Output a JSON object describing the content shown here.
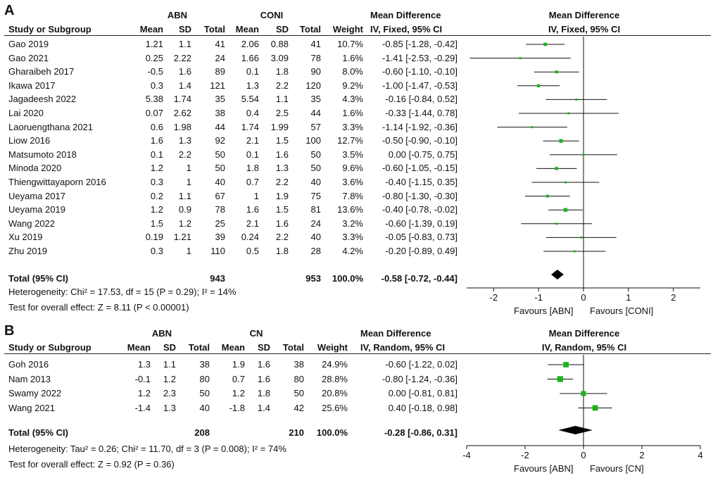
{
  "chart_data": [
    {
      "type": "forest",
      "panel_label": "A",
      "group_left": "ABN",
      "group_right": "CONI",
      "header_stat": "Mean Difference",
      "header_col": [
        "Study or Subgroup",
        "Mean",
        "SD",
        "Total",
        "Mean",
        "SD",
        "Total",
        "Weight",
        "IV, Fixed, 95% CI"
      ],
      "plot_header": [
        "Mean Difference",
        "IV, Fixed, 95% CI"
      ],
      "studies": [
        {
          "name": "Gao 2019",
          "m1": "1.21",
          "sd1": "1.1",
          "n1": "41",
          "m2": "2.06",
          "sd2": "0.88",
          "n2": "41",
          "weight": "10.7%",
          "ci_text": "-0.85 [-1.28, -0.42]",
          "md": -0.85,
          "lo": -1.28,
          "hi": -0.42,
          "w": 10.7
        },
        {
          "name": "Gao 2021",
          "m1": "0.25",
          "sd1": "2.22",
          "n1": "24",
          "m2": "1.66",
          "sd2": "3.09",
          "n2": "78",
          "weight": "1.6%",
          "ci_text": "-1.41 [-2.53, -0.29]",
          "md": -1.41,
          "lo": -2.53,
          "hi": -0.29,
          "w": 1.6
        },
        {
          "name": "Gharaibeh 2017",
          "m1": "-0.5",
          "sd1": "1.6",
          "n1": "89",
          "m2": "0.1",
          "sd2": "1.8",
          "n2": "90",
          "weight": "8.0%",
          "ci_text": "-0.60 [-1.10, -0.10]",
          "md": -0.6,
          "lo": -1.1,
          "hi": -0.1,
          "w": 8.0
        },
        {
          "name": "Ikawa 2017",
          "m1": "0.3",
          "sd1": "1.4",
          "n1": "121",
          "m2": "1.3",
          "sd2": "2.2",
          "n2": "120",
          "weight": "9.2%",
          "ci_text": "-1.00 [-1.47, -0.53]",
          "md": -1.0,
          "lo": -1.47,
          "hi": -0.53,
          "w": 9.2
        },
        {
          "name": "Jagadeesh 2022",
          "m1": "5.38",
          "sd1": "1.74",
          "n1": "35",
          "m2": "5.54",
          "sd2": "1.1",
          "n2": "35",
          "weight": "4.3%",
          "ci_text": "-0.16 [-0.84, 0.52]",
          "md": -0.16,
          "lo": -0.84,
          "hi": 0.52,
          "w": 4.3
        },
        {
          "name": "Lai 2020",
          "m1": "0.07",
          "sd1": "2.62",
          "n1": "38",
          "m2": "0.4",
          "sd2": "2.5",
          "n2": "44",
          "weight": "1.6%",
          "ci_text": "-0.33 [-1.44, 0.78]",
          "md": -0.33,
          "lo": -1.44,
          "hi": 0.78,
          "w": 1.6
        },
        {
          "name": "Laoruengthana 2021",
          "m1": "0.6",
          "sd1": "1.98",
          "n1": "44",
          "m2": "1.74",
          "sd2": "1.99",
          "n2": "57",
          "weight": "3.3%",
          "ci_text": "-1.14 [-1.92, -0.36]",
          "md": -1.14,
          "lo": -1.92,
          "hi": -0.36,
          "w": 3.3
        },
        {
          "name": "Liow 2016",
          "m1": "1.6",
          "sd1": "1.3",
          "n1": "92",
          "m2": "2.1",
          "sd2": "1.5",
          "n2": "100",
          "weight": "12.7%",
          "ci_text": "-0.50 [-0.90, -0.10]",
          "md": -0.5,
          "lo": -0.9,
          "hi": -0.1,
          "w": 12.7
        },
        {
          "name": "Matsumoto 2018",
          "m1": "0.1",
          "sd1": "2.2",
          "n1": "50",
          "m2": "0.1",
          "sd2": "1.6",
          "n2": "50",
          "weight": "3.5%",
          "ci_text": "0.00 [-0.75, 0.75]",
          "md": 0.0,
          "lo": -0.75,
          "hi": 0.75,
          "w": 3.5
        },
        {
          "name": "Minoda 2020",
          "m1": "1.2",
          "sd1": "1",
          "n1": "50",
          "m2": "1.8",
          "sd2": "1.3",
          "n2": "50",
          "weight": "9.6%",
          "ci_text": "-0.60 [-1.05, -0.15]",
          "md": -0.6,
          "lo": -1.05,
          "hi": -0.15,
          "w": 9.6
        },
        {
          "name": "Thiengwittayaporn 2016",
          "m1": "0.3",
          "sd1": "1",
          "n1": "40",
          "m2": "0.7",
          "sd2": "2.2",
          "n2": "40",
          "weight": "3.6%",
          "ci_text": "-0.40 [-1.15, 0.35]",
          "md": -0.4,
          "lo": -1.15,
          "hi": 0.35,
          "w": 3.6
        },
        {
          "name": "Ueyama 2017",
          "m1": "0.2",
          "sd1": "1.1",
          "n1": "67",
          "m2": "1",
          "sd2": "1.9",
          "n2": "75",
          "weight": "7.8%",
          "ci_text": "-0.80 [-1.30, -0.30]",
          "md": -0.8,
          "lo": -1.3,
          "hi": -0.3,
          "w": 7.8
        },
        {
          "name": "Ueyama 2019",
          "m1": "1.2",
          "sd1": "0.9",
          "n1": "78",
          "m2": "1.6",
          "sd2": "1.5",
          "n2": "81",
          "weight": "13.6%",
          "ci_text": "-0.40 [-0.78, -0.02]",
          "md": -0.4,
          "lo": -0.78,
          "hi": -0.02,
          "w": 13.6
        },
        {
          "name": "Wang 2022",
          "m1": "1.5",
          "sd1": "1.2",
          "n1": "25",
          "m2": "2.1",
          "sd2": "1.6",
          "n2": "24",
          "weight": "3.2%",
          "ci_text": "-0.60 [-1.39, 0.19]",
          "md": -0.6,
          "lo": -1.39,
          "hi": 0.19,
          "w": 3.2
        },
        {
          "name": "Xu 2019",
          "m1": "0.19",
          "sd1": "1.21",
          "n1": "39",
          "m2": "0.24",
          "sd2": "2.2",
          "n2": "40",
          "weight": "3.3%",
          "ci_text": "-0.05 [-0.83, 0.73]",
          "md": -0.05,
          "lo": -0.83,
          "hi": 0.73,
          "w": 3.3
        },
        {
          "name": "Zhu 2019",
          "m1": "0.3",
          "sd1": "1",
          "n1": "110",
          "m2": "0.5",
          "sd2": "1.8",
          "n2": "28",
          "weight": "4.2%",
          "ci_text": "-0.20 [-0.89, 0.49]",
          "md": -0.2,
          "lo": -0.89,
          "hi": 0.49,
          "w": 4.2
        }
      ],
      "total": {
        "label": "Total (95% CI)",
        "n1": "943",
        "n2": "953",
        "weight": "100.0%",
        "ci_text": "-0.58 [-0.72, -0.44]",
        "md": -0.58,
        "lo": -0.72,
        "hi": -0.44
      },
      "heterogeneity": "Heterogeneity: Chi² = 17.53, df = 15 (P = 0.29); I² = 14%",
      "overall_effect": "Test for overall effect: Z = 8.11 (P < 0.00001)",
      "xlim": [
        -2.6,
        2.6
      ],
      "ticks": [
        -2,
        -1,
        0,
        1,
        2
      ],
      "tick_labels": [
        "-2",
        "-1",
        "0",
        "1",
        "2"
      ],
      "favours_left": "Favours [ABN]",
      "favours_right": "Favours [CONI]",
      "marker_color": "#1db31d"
    },
    {
      "type": "forest",
      "panel_label": "B",
      "group_left": "ABN",
      "group_right": "CN",
      "header_stat": "Mean Difference",
      "header_col": [
        "Study or Subgroup",
        "Mean",
        "SD",
        "Total",
        "Mean",
        "SD",
        "Total",
        "Weight",
        "IV, Random, 95% CI"
      ],
      "plot_header": [
        "Mean Difference",
        "IV, Random, 95% CI"
      ],
      "studies": [
        {
          "name": "Goh 2016",
          "m1": "1.3",
          "sd1": "1.1",
          "n1": "38",
          "m2": "1.9",
          "sd2": "1.6",
          "n2": "38",
          "weight": "24.9%",
          "ci_text": "-0.60 [-1.22, 0.02]",
          "md": -0.6,
          "lo": -1.22,
          "hi": 0.02,
          "w": 24.9
        },
        {
          "name": "Nam 2013",
          "m1": "-0.1",
          "sd1": "1.2",
          "n1": "80",
          "m2": "0.7",
          "sd2": "1.6",
          "n2": "80",
          "weight": "28.8%",
          "ci_text": "-0.80 [-1.24, -0.36]",
          "md": -0.8,
          "lo": -1.24,
          "hi": -0.36,
          "w": 28.8
        },
        {
          "name": "Swamy 2022",
          "m1": "1.2",
          "sd1": "2.3",
          "n1": "50",
          "m2": "1.2",
          "sd2": "1.8",
          "n2": "50",
          "weight": "20.8%",
          "ci_text": "0.00 [-0.81, 0.81]",
          "md": 0.0,
          "lo": -0.81,
          "hi": 0.81,
          "w": 20.8
        },
        {
          "name": "Wang 2021",
          "m1": "-1.4",
          "sd1": "1.3",
          "n1": "40",
          "m2": "-1.8",
          "sd2": "1.4",
          "n2": "42",
          "weight": "25.6%",
          "ci_text": "0.40 [-0.18, 0.98]",
          "md": 0.4,
          "lo": -0.18,
          "hi": 0.98,
          "w": 25.6
        }
      ],
      "total": {
        "label": "Total (95% CI)",
        "n1": "208",
        "n2": "210",
        "weight": "100.0%",
        "ci_text": "-0.28 [-0.86, 0.31]",
        "md": -0.28,
        "lo": -0.86,
        "hi": 0.31
      },
      "heterogeneity": "Heterogeneity: Tau² = 0.26; Chi² = 11.70, df = 3 (P = 0.008); I² = 74%",
      "overall_effect": "Test for overall effect: Z = 0.92 (P = 0.36)",
      "xlim": [
        -4,
        4
      ],
      "ticks": [
        -4,
        -2,
        0,
        2,
        4
      ],
      "tick_labels": [
        "-4",
        "-2",
        "0",
        "2",
        "4"
      ],
      "favours_left": "Favours [ABN]",
      "favours_right": "Favours [CN]",
      "marker_color": "#1db31d"
    }
  ]
}
